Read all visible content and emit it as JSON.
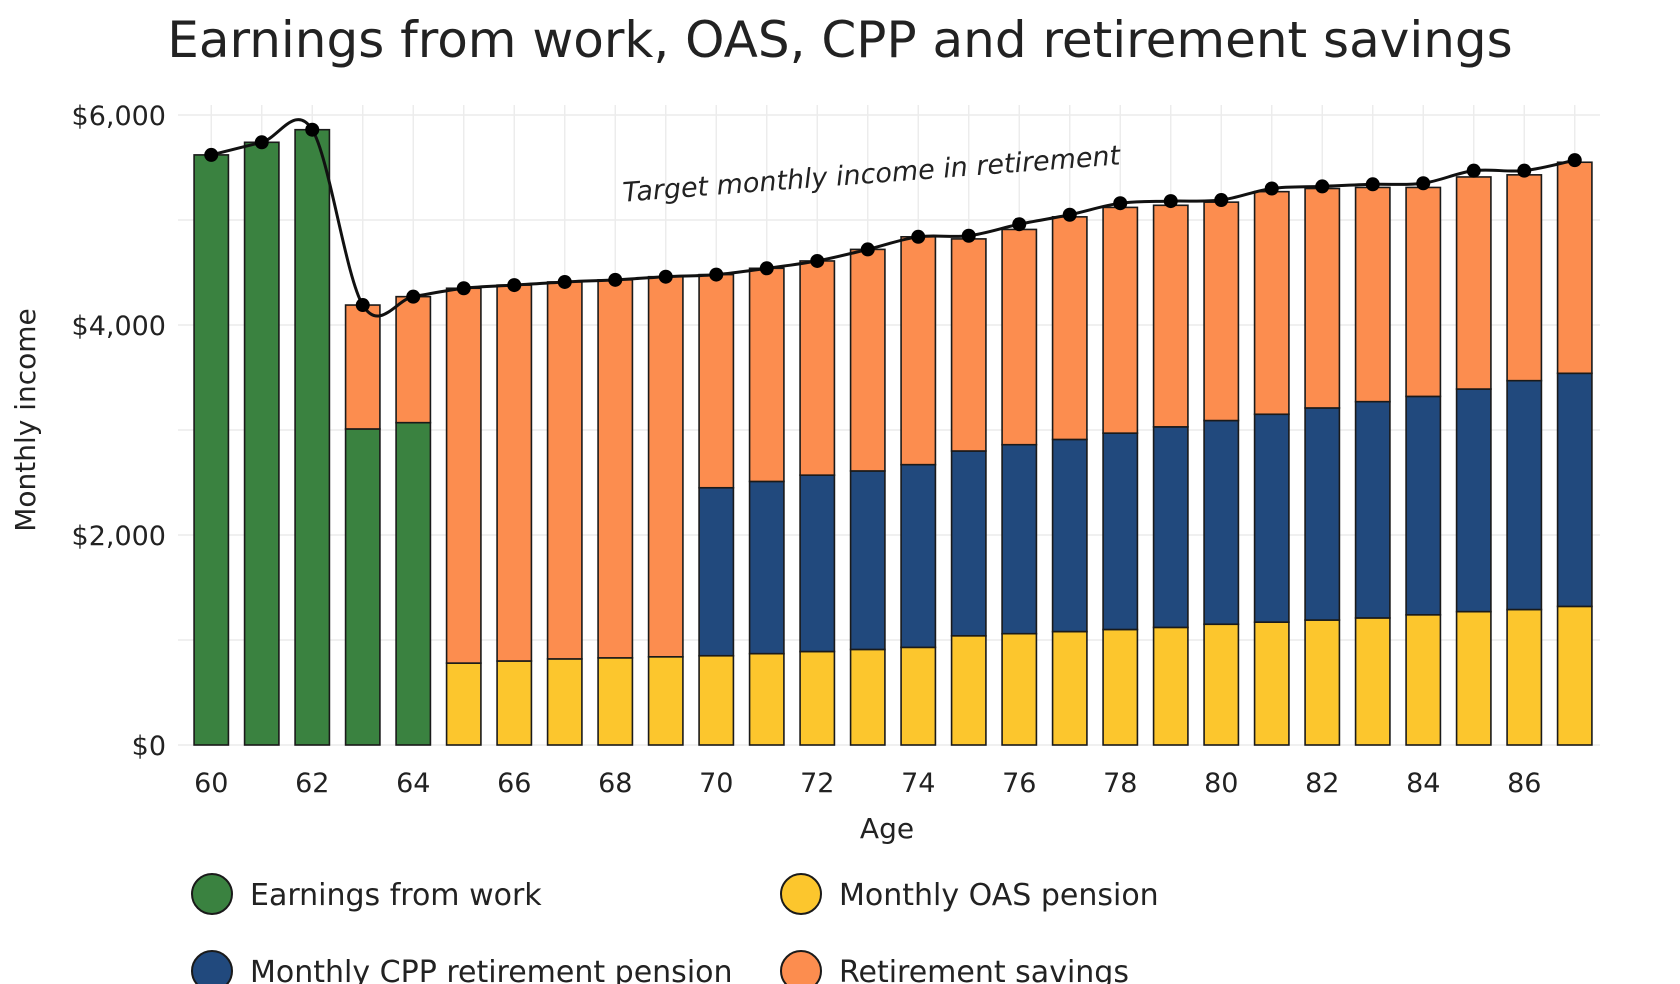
{
  "chart_data": {
    "type": "bar",
    "stacked": true,
    "title": "Earnings from work, OAS, CPP and retirement savings",
    "xlabel": "Age",
    "ylabel": "Monthly income",
    "ylim": [
      0,
      6000
    ],
    "y_ticks": [
      0,
      2000,
      4000,
      6000
    ],
    "y_tick_labels": [
      "$0",
      "$2,000",
      "$4,000",
      "$6,000"
    ],
    "x_tick_labels": [
      "60",
      "62",
      "64",
      "66",
      "68",
      "70",
      "72",
      "74",
      "76",
      "78",
      "80",
      "82",
      "84",
      "86"
    ],
    "grid": true,
    "legend_position": "bottom",
    "categories": [
      60,
      61,
      62,
      63,
      64,
      65,
      66,
      67,
      68,
      69,
      70,
      71,
      72,
      73,
      74,
      75,
      76,
      77,
      78,
      79,
      80,
      81,
      82,
      83,
      84,
      85,
      86,
      87
    ],
    "series": [
      {
        "name": "Earnings from work",
        "color": "#3a8240",
        "values": [
          5620,
          5740,
          5860,
          3010,
          3070,
          0,
          0,
          0,
          0,
          0,
          0,
          0,
          0,
          0,
          0,
          0,
          0,
          0,
          0,
          0,
          0,
          0,
          0,
          0,
          0,
          0,
          0,
          0
        ]
      },
      {
        "name": "Monthly OAS pension",
        "color": "#fcc62d",
        "values": [
          0,
          0,
          0,
          0,
          0,
          780,
          800,
          820,
          830,
          840,
          850,
          870,
          890,
          910,
          930,
          1040,
          1060,
          1080,
          1100,
          1120,
          1150,
          1170,
          1190,
          1210,
          1240,
          1270,
          1290,
          1320
        ]
      },
      {
        "name": "Monthly CPP retirement pension",
        "color": "#21497d",
        "values": [
          0,
          0,
          0,
          0,
          0,
          0,
          0,
          0,
          0,
          0,
          1600,
          1640,
          1680,
          1700,
          1740,
          1760,
          1800,
          1830,
          1870,
          1910,
          1940,
          1980,
          2020,
          2060,
          2080,
          2120,
          2180,
          2220
        ]
      },
      {
        "name": "Retirement savings",
        "color": "#fc8d4f",
        "values": [
          0,
          0,
          0,
          1180,
          1200,
          3570,
          3580,
          3590,
          3600,
          3620,
          2030,
          2030,
          2040,
          2110,
          2170,
          2020,
          2050,
          2120,
          2150,
          2110,
          2080,
          2120,
          2090,
          2040,
          1990,
          2020,
          1960,
          2010
        ]
      }
    ],
    "target_line": {
      "label": "Target monthly income in retirement",
      "values": [
        5620,
        5740,
        5860,
        4190,
        4270,
        4350,
        4380,
        4410,
        4430,
        4460,
        4480,
        4540,
        4610,
        4720,
        4840,
        4850,
        4960,
        5050,
        5160,
        5180,
        5190,
        5300,
        5320,
        5340,
        5350,
        5470,
        5470,
        5570
      ]
    }
  }
}
